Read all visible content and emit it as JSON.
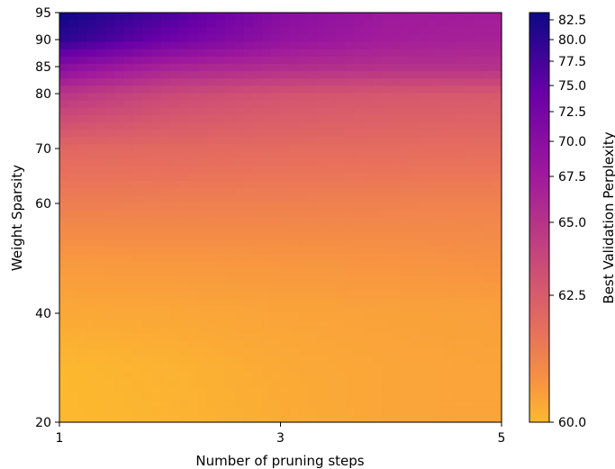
{
  "chart_data": {
    "type": "heatmap",
    "title": "",
    "xlabel": "Number of pruning steps",
    "ylabel": "Weight Sparsity",
    "colorbar_label": "Best Validation Perplexity",
    "colormap": "plasma_r",
    "x": [
      1,
      2,
      3,
      4,
      5
    ],
    "y": [
      20,
      30,
      40,
      50,
      60,
      70,
      80,
      85,
      90,
      95
    ],
    "xlim": [
      1,
      5
    ],
    "ylim": [
      20,
      95
    ],
    "x_ticks": [
      "1",
      "3",
      "5"
    ],
    "y_ticks": [
      "20",
      "40",
      "60",
      "70",
      "80",
      "85",
      "90",
      "95"
    ],
    "y_scale": "nonlinear (ticks compress toward top)",
    "colorbar_ticks": [
      "60.0",
      "62.5",
      "65.0",
      "67.5",
      "70.0",
      "72.5",
      "75.0",
      "77.5",
      "80.0",
      "82.5"
    ],
    "colorbar_range": [
      60.0,
      83.0
    ],
    "z": [
      [
        60.0,
        60.3,
        60.8,
        61.2,
        61.3
      ],
      [
        60.1,
        60.4,
        60.9,
        61.2,
        61.3
      ],
      [
        61.0,
        61.1,
        61.3,
        61.4,
        61.5
      ],
      [
        62.0,
        62.1,
        62.2,
        62.3,
        62.5
      ],
      [
        64.0,
        63.9,
        63.8,
        63.7,
        63.6
      ],
      [
        66.0,
        65.8,
        65.6,
        65.5,
        65.4
      ],
      [
        71.0,
        69.0,
        68.0,
        67.6,
        67.4
      ],
      [
        76.0,
        73.0,
        72.0,
        71.5,
        71.5
      ],
      [
        81.5,
        78.0,
        75.0,
        73.5,
        73.0
      ],
      [
        83.0,
        80.0,
        76.0,
        74.0,
        73.5
      ]
    ]
  }
}
